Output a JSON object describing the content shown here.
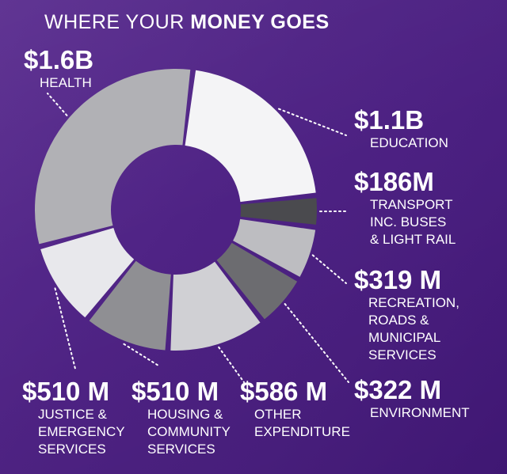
{
  "title": {
    "prefix": "WHERE YOUR ",
    "emphasis": "MONEY GOES"
  },
  "colors": {
    "background": "#4f2385",
    "leader": "#ffffff"
  },
  "chart_data": {
    "type": "pie",
    "title": "WHERE YOUR MONEY GOES",
    "donut": true,
    "unit": "AUD",
    "slices": [
      {
        "amount": "$1.1B",
        "label": "EDUCATION",
        "value": 1100,
        "color": "#f4f4f6"
      },
      {
        "amount": "$186M",
        "label": "TRANSPORT\nINC. BUSES\n& LIGHT RAIL",
        "value": 186,
        "color": "#4a4a4e"
      },
      {
        "amount": "$319 M",
        "label": "RECREATION,\nROADS &\nMUNICIPAL\nSERVICES",
        "value": 319,
        "color": "#bdbdc1"
      },
      {
        "amount": "$322 M",
        "label": "ENVIRONMENT",
        "value": 322,
        "color": "#6c6c70"
      },
      {
        "amount": "$586 M",
        "label": "OTHER\nEXPENDITURE",
        "value": 586,
        "color": "#d0d0d4"
      },
      {
        "amount": "$510 M",
        "label": "HOUSING &\nCOMMUNITY\nSERVICES",
        "value": 510,
        "color": "#8f8f93"
      },
      {
        "amount": "$510 M",
        "label": "JUSTICE &\nEMERGENCY\nSERVICES",
        "value": 510,
        "color": "#e8e8ec"
      },
      {
        "amount": "$1.6B",
        "label": "HEALTH",
        "value": 1600,
        "color": "#b1b1b5"
      }
    ]
  }
}
